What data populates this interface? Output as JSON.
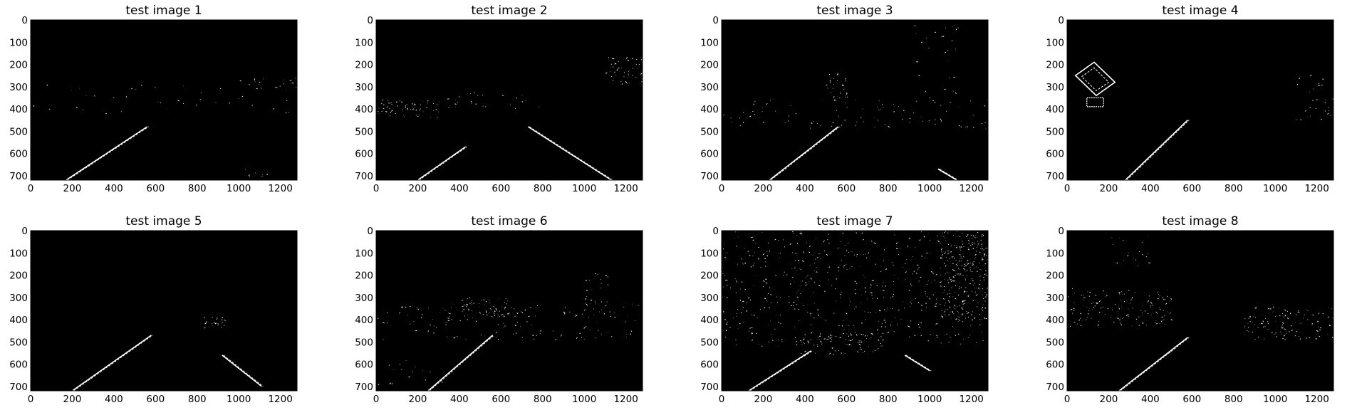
{
  "colors": {
    "background": "#000000",
    "edge": "#ffffff",
    "figure": "#ffffff"
  },
  "chart_data": [
    {
      "type": "image",
      "title": "test image 1",
      "xlim": [
        0,
        1280
      ],
      "ylim": [
        720,
        0
      ],
      "xticks": [
        0,
        200,
        400,
        600,
        800,
        1000,
        1200
      ],
      "yticks": [
        0,
        100,
        200,
        300,
        400,
        500,
        600,
        700
      ],
      "xtick_labels": [
        "0",
        "200",
        "400",
        "600",
        "800",
        "1000",
        "1200"
      ],
      "ytick_labels": [
        "0",
        "100",
        "200",
        "300",
        "400",
        "500",
        "600",
        "700"
      ]
    },
    {
      "type": "image",
      "title": "test image 2",
      "xlim": [
        0,
        1280
      ],
      "ylim": [
        720,
        0
      ],
      "xticks": [
        0,
        200,
        400,
        600,
        800,
        1000,
        1200
      ],
      "yticks": [
        0,
        100,
        200,
        300,
        400,
        500,
        600,
        700
      ],
      "xtick_labels": [
        "0",
        "200",
        "400",
        "600",
        "800",
        "1000",
        "1200"
      ],
      "ytick_labels": [
        "0",
        "100",
        "200",
        "300",
        "400",
        "500",
        "600",
        "700"
      ]
    },
    {
      "type": "image",
      "title": "test image 3",
      "xlim": [
        0,
        1280
      ],
      "ylim": [
        720,
        0
      ],
      "xticks": [
        0,
        200,
        400,
        600,
        800,
        1000,
        1200
      ],
      "yticks": [
        0,
        100,
        200,
        300,
        400,
        500,
        600,
        700
      ],
      "xtick_labels": [
        "0",
        "200",
        "400",
        "600",
        "800",
        "1000",
        "1200"
      ],
      "ytick_labels": [
        "0",
        "100",
        "200",
        "300",
        "400",
        "500",
        "600",
        "700"
      ]
    },
    {
      "type": "image",
      "title": "test image 4",
      "xlim": [
        0,
        1280
      ],
      "ylim": [
        720,
        0
      ],
      "xticks": [
        0,
        200,
        400,
        600,
        800,
        1000,
        1200
      ],
      "yticks": [
        0,
        100,
        200,
        300,
        400,
        500,
        600,
        700
      ],
      "xtick_labels": [
        "0",
        "200",
        "400",
        "600",
        "800",
        "1000",
        "1200"
      ],
      "ytick_labels": [
        "0",
        "100",
        "200",
        "300",
        "400",
        "500",
        "600",
        "700"
      ]
    },
    {
      "type": "image",
      "title": "test image 5",
      "xlim": [
        0,
        1280
      ],
      "ylim": [
        720,
        0
      ],
      "xticks": [
        0,
        200,
        400,
        600,
        800,
        1000,
        1200
      ],
      "yticks": [
        0,
        100,
        200,
        300,
        400,
        500,
        600,
        700
      ],
      "xtick_labels": [
        "0",
        "200",
        "400",
        "600",
        "800",
        "1000",
        "1200"
      ],
      "ytick_labels": [
        "0",
        "100",
        "200",
        "300",
        "400",
        "500",
        "600",
        "700"
      ]
    },
    {
      "type": "image",
      "title": "test image 6",
      "xlim": [
        0,
        1280
      ],
      "ylim": [
        720,
        0
      ],
      "xticks": [
        0,
        200,
        400,
        600,
        800,
        1000,
        1200
      ],
      "yticks": [
        0,
        100,
        200,
        300,
        400,
        500,
        600,
        700
      ],
      "xtick_labels": [
        "0",
        "200",
        "400",
        "600",
        "800",
        "1000",
        "1200"
      ],
      "ytick_labels": [
        "0",
        "100",
        "200",
        "300",
        "400",
        "500",
        "600",
        "700"
      ]
    },
    {
      "type": "image",
      "title": "test image 7",
      "xlim": [
        0,
        1280
      ],
      "ylim": [
        720,
        0
      ],
      "xticks": [
        0,
        200,
        400,
        600,
        800,
        1000,
        1200
      ],
      "yticks": [
        0,
        100,
        200,
        300,
        400,
        500,
        600,
        700
      ],
      "xtick_labels": [
        "0",
        "200",
        "400",
        "600",
        "800",
        "1000",
        "1200"
      ],
      "ytick_labels": [
        "0",
        "100",
        "200",
        "300",
        "400",
        "500",
        "600",
        "700"
      ]
    },
    {
      "type": "image",
      "title": "test image 8",
      "xlim": [
        0,
        1280
      ],
      "ylim": [
        720,
        0
      ],
      "xticks": [
        0,
        200,
        400,
        600,
        800,
        1000,
        1200
      ],
      "yticks": [
        0,
        100,
        200,
        300,
        400,
        500,
        600,
        700
      ],
      "xtick_labels": [
        "0",
        "200",
        "400",
        "600",
        "800",
        "1000",
        "1200"
      ],
      "ytick_labels": [
        "0",
        "100",
        "200",
        "300",
        "400",
        "500",
        "600",
        "700"
      ]
    }
  ]
}
